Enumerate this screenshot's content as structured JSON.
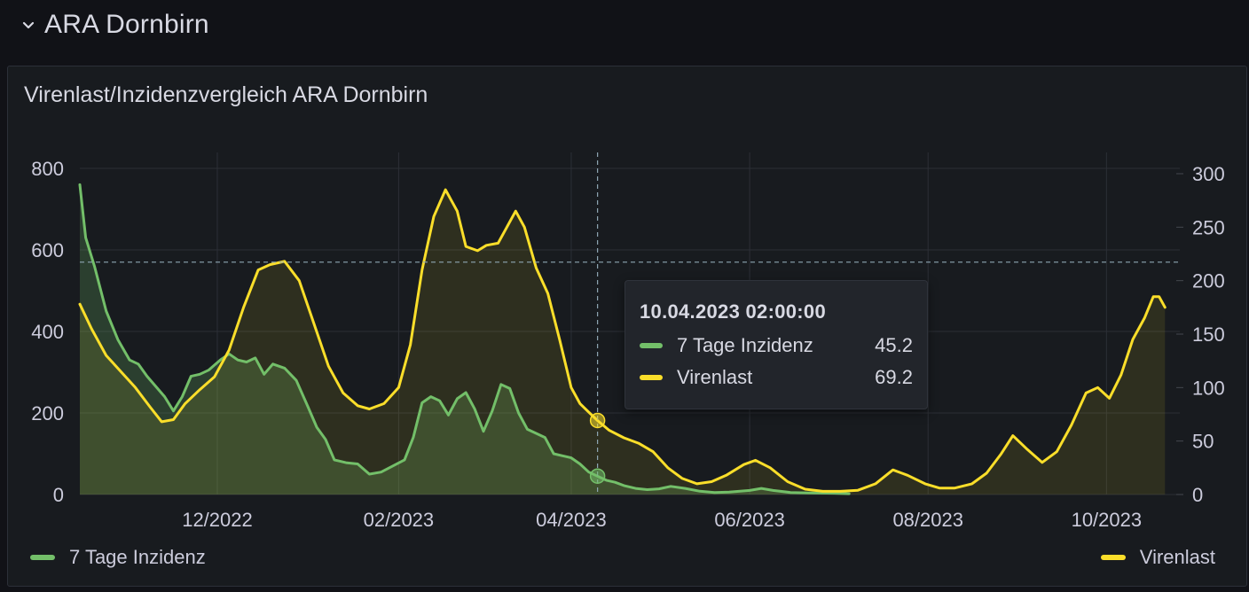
{
  "row": {
    "title": "ARA Dornbirn",
    "chevron_icon": "chevron-down-icon"
  },
  "panel": {
    "title": "Virenlast/Inzidenzvergleich ARA Dornbirn"
  },
  "colors": {
    "inzidenz": "#73bf69",
    "virenlast": "#fade2a",
    "grid": "#2c2f36",
    "tick": "#ccccdc",
    "crosshair": "#8ea6b4"
  },
  "tooltip": {
    "time": "10.04.2023 02:00:00",
    "rows": [
      {
        "name": "7 Tage Inzidenz",
        "value": "45.2"
      },
      {
        "name": "Virenlast",
        "value": "69.2"
      }
    ]
  },
  "legend": {
    "left": "7 Tage Inzidenz",
    "right": "Virenlast"
  },
  "chart_data": {
    "type": "line",
    "x_axis": {
      "type": "time",
      "range": [
        "2022-10-15",
        "2023-10-20"
      ],
      "ticks": [
        {
          "date": "2022-12-01",
          "label": "12/2022"
        },
        {
          "date": "2023-02-01",
          "label": "02/2023"
        },
        {
          "date": "2023-04-01",
          "label": "04/2023"
        },
        {
          "date": "2023-06-01",
          "label": "06/2023"
        },
        {
          "date": "2023-08-01",
          "label": "08/2023"
        },
        {
          "date": "2023-10-01",
          "label": "10/2023"
        }
      ]
    },
    "y_left": {
      "ylim": [
        0,
        800
      ],
      "ticks": [
        0,
        200,
        400,
        600,
        800
      ]
    },
    "y_right": {
      "ylim": [
        0,
        300
      ],
      "ticks": [
        0,
        50,
        100,
        150,
        200,
        250,
        300
      ]
    },
    "grid": true,
    "legend_placement": "bottom",
    "crosshair": {
      "x": "2023-04-10",
      "y_left": 570
    },
    "series": [
      {
        "name": "7 Tage Inzidenz",
        "axis": "left",
        "fill": true,
        "points": [
          [
            "2022-10-15",
            760
          ],
          [
            "2022-10-17",
            630
          ],
          [
            "2022-10-20",
            560
          ],
          [
            "2022-10-24",
            450
          ],
          [
            "2022-10-28",
            380
          ],
          [
            "2022-11-01",
            330
          ],
          [
            "2022-11-04",
            320
          ],
          [
            "2022-11-07",
            290
          ],
          [
            "2022-11-10",
            265
          ],
          [
            "2022-11-13",
            240
          ],
          [
            "2022-11-16",
            205
          ],
          [
            "2022-11-19",
            240
          ],
          [
            "2022-11-22",
            290
          ],
          [
            "2022-11-25",
            295
          ],
          [
            "2022-11-28",
            305
          ],
          [
            "2022-12-02",
            330
          ],
          [
            "2022-12-05",
            345
          ],
          [
            "2022-12-08",
            330
          ],
          [
            "2022-12-11",
            325
          ],
          [
            "2022-12-14",
            335
          ],
          [
            "2022-12-17",
            295
          ],
          [
            "2022-12-20",
            320
          ],
          [
            "2022-12-24",
            310
          ],
          [
            "2022-12-28",
            280
          ],
          [
            "2023-01-01",
            215
          ],
          [
            "2023-01-04",
            165
          ],
          [
            "2023-01-07",
            135
          ],
          [
            "2023-01-10",
            85
          ],
          [
            "2023-01-14",
            78
          ],
          [
            "2023-01-18",
            75
          ],
          [
            "2023-01-22",
            50
          ],
          [
            "2023-01-26",
            55
          ],
          [
            "2023-01-30",
            70
          ],
          [
            "2023-02-03",
            85
          ],
          [
            "2023-02-06",
            140
          ],
          [
            "2023-02-09",
            225
          ],
          [
            "2023-02-12",
            240
          ],
          [
            "2023-02-15",
            230
          ],
          [
            "2023-02-18",
            195
          ],
          [
            "2023-02-21",
            235
          ],
          [
            "2023-02-24",
            250
          ],
          [
            "2023-02-27",
            210
          ],
          [
            "2023-03-02",
            155
          ],
          [
            "2023-03-05",
            205
          ],
          [
            "2023-03-08",
            270
          ],
          [
            "2023-03-11",
            260
          ],
          [
            "2023-03-14",
            200
          ],
          [
            "2023-03-17",
            160
          ],
          [
            "2023-03-20",
            150
          ],
          [
            "2023-03-23",
            140
          ],
          [
            "2023-03-26",
            100
          ],
          [
            "2023-03-29",
            95
          ],
          [
            "2023-04-01",
            90
          ],
          [
            "2023-04-04",
            75
          ],
          [
            "2023-04-07",
            55
          ],
          [
            "2023-04-10",
            45
          ],
          [
            "2023-04-13",
            35
          ],
          [
            "2023-04-16",
            30
          ],
          [
            "2023-04-19",
            22
          ],
          [
            "2023-04-23",
            15
          ],
          [
            "2023-04-27",
            12
          ],
          [
            "2023-05-01",
            14
          ],
          [
            "2023-05-05",
            20
          ],
          [
            "2023-05-10",
            15
          ],
          [
            "2023-05-15",
            8
          ],
          [
            "2023-05-20",
            5
          ],
          [
            "2023-05-25",
            6
          ],
          [
            "2023-06-01",
            10
          ],
          [
            "2023-06-05",
            15
          ],
          [
            "2023-06-09",
            10
          ],
          [
            "2023-06-15",
            5
          ],
          [
            "2023-06-22",
            4
          ],
          [
            "2023-06-30",
            3
          ],
          [
            "2023-07-05",
            2
          ]
        ]
      },
      {
        "name": "Virenlast",
        "axis": "right",
        "fill": true,
        "points": [
          [
            "2022-10-15",
            178
          ],
          [
            "2022-10-19",
            155
          ],
          [
            "2022-10-24",
            130
          ],
          [
            "2022-10-29",
            115
          ],
          [
            "2022-11-03",
            100
          ],
          [
            "2022-11-08",
            82
          ],
          [
            "2022-11-12",
            68
          ],
          [
            "2022-11-16",
            70
          ],
          [
            "2022-11-20",
            85
          ],
          [
            "2022-11-25",
            98
          ],
          [
            "2022-11-30",
            110
          ],
          [
            "2022-12-05",
            135
          ],
          [
            "2022-12-10",
            175
          ],
          [
            "2022-12-15",
            210
          ],
          [
            "2022-12-19",
            215
          ],
          [
            "2022-12-24",
            218
          ],
          [
            "2022-12-29",
            200
          ],
          [
            "2023-01-03",
            160
          ],
          [
            "2023-01-08",
            120
          ],
          [
            "2023-01-13",
            95
          ],
          [
            "2023-01-18",
            83
          ],
          [
            "2023-01-22",
            80
          ],
          [
            "2023-01-27",
            85
          ],
          [
            "2023-02-01",
            100
          ],
          [
            "2023-02-05",
            140
          ],
          [
            "2023-02-09",
            210
          ],
          [
            "2023-02-13",
            260
          ],
          [
            "2023-02-17",
            285
          ],
          [
            "2023-02-21",
            265
          ],
          [
            "2023-02-24",
            232
          ],
          [
            "2023-02-28",
            228
          ],
          [
            "2023-03-03",
            233
          ],
          [
            "2023-03-07",
            235
          ],
          [
            "2023-03-10",
            250
          ],
          [
            "2023-03-13",
            265
          ],
          [
            "2023-03-16",
            250
          ],
          [
            "2023-03-20",
            212
          ],
          [
            "2023-03-24",
            188
          ],
          [
            "2023-03-28",
            145
          ],
          [
            "2023-04-01",
            100
          ],
          [
            "2023-04-04",
            85
          ],
          [
            "2023-04-07",
            77
          ],
          [
            "2023-04-10",
            69.2
          ],
          [
            "2023-04-14",
            60
          ],
          [
            "2023-04-19",
            53
          ],
          [
            "2023-04-24",
            48
          ],
          [
            "2023-04-29",
            40
          ],
          [
            "2023-05-04",
            25
          ],
          [
            "2023-05-09",
            15
          ],
          [
            "2023-05-14",
            10
          ],
          [
            "2023-05-19",
            12
          ],
          [
            "2023-05-24",
            18
          ],
          [
            "2023-05-30",
            28
          ],
          [
            "2023-06-03",
            32
          ],
          [
            "2023-06-08",
            25
          ],
          [
            "2023-06-14",
            12
          ],
          [
            "2023-06-20",
            5
          ],
          [
            "2023-06-26",
            3
          ],
          [
            "2023-07-02",
            3
          ],
          [
            "2023-07-08",
            4
          ],
          [
            "2023-07-14",
            10
          ],
          [
            "2023-07-20",
            23
          ],
          [
            "2023-07-25",
            18
          ],
          [
            "2023-07-31",
            10
          ],
          [
            "2023-08-05",
            6
          ],
          [
            "2023-08-10",
            6
          ],
          [
            "2023-08-16",
            10
          ],
          [
            "2023-08-21",
            20
          ],
          [
            "2023-08-26",
            38
          ],
          [
            "2023-08-30",
            55
          ],
          [
            "2023-09-04",
            42
          ],
          [
            "2023-09-09",
            30
          ],
          [
            "2023-09-14",
            40
          ],
          [
            "2023-09-19",
            65
          ],
          [
            "2023-09-24",
            95
          ],
          [
            "2023-09-28",
            100
          ],
          [
            "2023-10-02",
            90
          ],
          [
            "2023-10-06",
            112
          ],
          [
            "2023-10-10",
            145
          ],
          [
            "2023-10-14",
            165
          ],
          [
            "2023-10-17",
            185
          ],
          [
            "2023-10-19",
            185
          ],
          [
            "2023-10-21",
            175
          ]
        ]
      }
    ]
  }
}
